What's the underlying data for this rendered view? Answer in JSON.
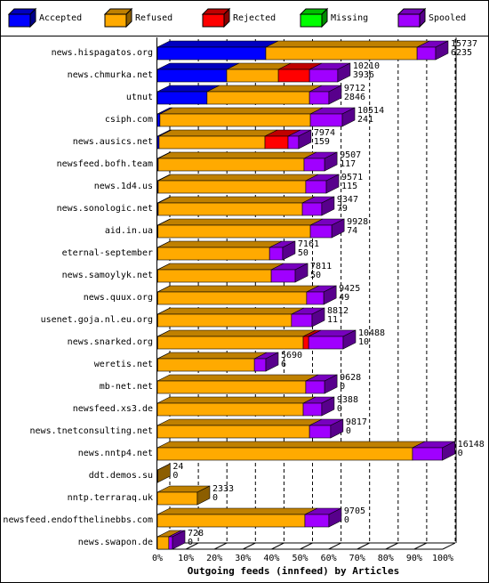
{
  "chart_data": {
    "type": "bar3d",
    "xlabel": "Outgoing feeds (innfeed) by Articles",
    "categories": [
      "news.hispagatos.org",
      "news.chmurka.net",
      "utnut",
      "csiph.com",
      "news.ausics.net",
      "newsfeed.bofh.team",
      "news.1d4.us",
      "news.sonologic.net",
      "aid.in.ua",
      "eternal-september",
      "news.samoylyk.net",
      "news.quux.org",
      "usenet.goja.nl.eu.org",
      "news.snarked.org",
      "weretis.net",
      "mb-net.net",
      "newsfeed.xs3.de",
      "news.tnetconsulting.net",
      "news.nntp4.net",
      "ddt.demos.su",
      "nntp.terraraq.uk",
      "newsfeed.endofthelinebbs.com",
      "news.swapon.de"
    ],
    "offered": [
      "15737",
      "10210",
      "9712",
      "10514",
      "7974",
      "9507",
      "9571",
      "9347",
      "9928",
      "7161",
      "7811",
      "9425",
      "8812",
      "10488",
      "5690",
      "9628",
      "9388",
      "9817",
      "16148",
      "24",
      "2333",
      "9705",
      "728"
    ],
    "accepted": [
      "6235",
      "3936",
      "2846",
      "241",
      "159",
      "117",
      "115",
      "79",
      "74",
      "50",
      "50",
      "49",
      "11",
      "10",
      "6",
      "0",
      "0",
      "0",
      "0",
      "0",
      "0",
      "0",
      "0"
    ],
    "series": [
      {
        "name": "Accepted",
        "color": "#0000ff",
        "values": [
          38,
          24.3,
          17.4,
          0.9,
          0.6,
          0.3,
          0.3,
          0.3,
          0.2,
          0.1,
          0.1,
          0.1,
          0.1,
          0.1,
          0.1,
          0,
          0,
          0,
          0,
          0,
          0,
          0,
          0
        ]
      },
      {
        "name": "Refused",
        "color": "#ffaa00",
        "values": [
          53,
          18.1,
          35.9,
          52.7,
          37.1,
          51.1,
          51.7,
          50.5,
          53.4,
          39.2,
          39.8,
          52.2,
          46.9,
          51,
          33.9,
          52,
          51.1,
          53.3,
          89.4,
          0.1,
          14,
          51.7,
          4
        ]
      },
      {
        "name": "Rejected",
        "color": "#ff0000",
        "values": [
          0,
          10.9,
          0,
          0,
          8.1,
          0,
          0,
          0,
          0,
          0,
          0,
          0,
          0,
          1.9,
          0,
          0,
          0,
          0,
          0,
          0,
          0,
          0,
          0
        ]
      },
      {
        "name": "Missing",
        "color": "#00ff00",
        "values": [
          0,
          0,
          0,
          0,
          0,
          0,
          0,
          0,
          0,
          0,
          0,
          0,
          0,
          0,
          0,
          0,
          0,
          0,
          0,
          0,
          0,
          0,
          0
        ]
      },
      {
        "name": "Spooled",
        "color": "#a000ff",
        "values": [
          6.5,
          9.9,
          6.8,
          11.2,
          3.7,
          7.2,
          7.2,
          6.8,
          7.5,
          4.6,
          8.4,
          6,
          7.2,
          12.1,
          4,
          6.6,
          6.5,
          7.4,
          10.5,
          0,
          0,
          8.4,
          1.3
        ]
      }
    ],
    "xlim": [
      0,
      100
    ],
    "xticks": [
      {
        "value": 0,
        "label": "0%"
      },
      {
        "value": 10,
        "label": "10%"
      },
      {
        "value": 20,
        "label": "20%"
      },
      {
        "value": 30,
        "label": "30%"
      },
      {
        "value": 40,
        "label": "40%"
      },
      {
        "value": 50,
        "label": "50%"
      },
      {
        "value": 60,
        "label": "60%"
      },
      {
        "value": 70,
        "label": "70%"
      },
      {
        "value": 80,
        "label": "80%"
      },
      {
        "value": 90,
        "label": "90%"
      },
      {
        "value": 100,
        "label": "100%"
      }
    ],
    "grid": true
  }
}
